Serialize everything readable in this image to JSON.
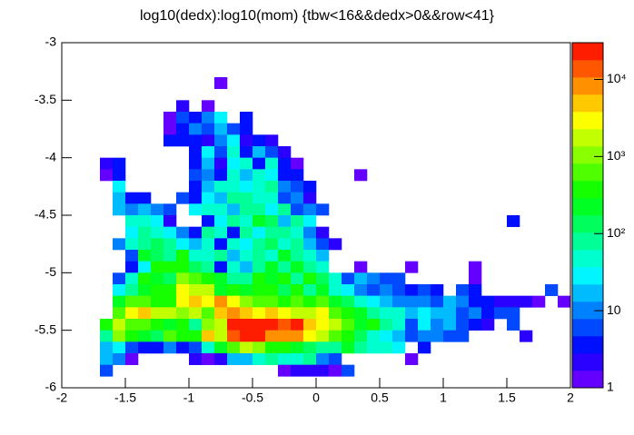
{
  "chart_data": {
    "type": "heatmap",
    "title": "log10(dedx):log10(mom) {tbw<16&&dedx>0&&row<41}",
    "xlim": [
      -2,
      2
    ],
    "ylim": [
      -6,
      -3
    ],
    "xticks": [
      -2,
      -1.5,
      -1,
      -0.5,
      0,
      0.5,
      1,
      1.5,
      2
    ],
    "yticks": [
      -6,
      -5.5,
      -5,
      -4.5,
      -4,
      -3.5,
      -3
    ],
    "zlim": [
      1,
      30000
    ],
    "log_z": true,
    "zticks": [
      1,
      10,
      {
        "value": 100,
        "label": "10²"
      },
      {
        "value": 1000,
        "label": "10³"
      },
      {
        "value": 10000,
        "label": "10⁴"
      }
    ],
    "rows": [
      {
        "y": -3.4,
        "x": [
          -0.8
        ],
        "z": [
          1
        ]
      },
      {
        "y": -3.6,
        "x": [
          -1.1,
          -0.9
        ],
        "z": [
          2,
          1
        ]
      },
      {
        "y": -3.7,
        "x": [
          -1.2,
          -1.1,
          -1.0,
          -0.9,
          -0.8,
          -0.6
        ],
        "z": [
          1,
          5,
          3,
          8,
          30,
          3
        ]
      },
      {
        "y": -3.8,
        "x": [
          -1.2,
          -1.1,
          -1.0,
          -0.9,
          -0.8,
          -0.7,
          -0.6
        ],
        "z": [
          1,
          3,
          10,
          5,
          20,
          5,
          4
        ]
      },
      {
        "y": -3.9,
        "x": [
          -1.2,
          -1.1,
          -1.0,
          -0.9,
          -0.8,
          -0.7,
          -0.6,
          -0.5,
          -0.4
        ],
        "z": [
          3,
          3,
          4,
          2,
          10,
          30,
          2,
          3,
          2
        ]
      },
      {
        "y": -4.0,
        "x": [
          -1.0,
          -0.9,
          -0.8,
          -0.7,
          -0.6,
          -0.5,
          -0.4,
          -0.3
        ],
        "z": [
          3,
          30,
          5,
          60,
          4,
          20,
          5,
          2
        ]
      },
      {
        "y": -4.1,
        "x": [
          -1.7,
          -1.6,
          -1.0,
          -0.9,
          -0.8,
          -0.7,
          -0.6,
          -0.5,
          -0.4,
          -0.3,
          -0.2
        ],
        "z": [
          2,
          4,
          3,
          20,
          2,
          30,
          60,
          4,
          40,
          3,
          1
        ]
      },
      {
        "y": -4.2,
        "x": [
          -1.7,
          -1.6,
          -1.0,
          -0.9,
          -0.8,
          -0.7,
          -0.6,
          -0.5,
          -0.4,
          -0.3,
          -0.2,
          0.3
        ],
        "z": [
          1,
          3,
          5,
          10,
          3,
          50,
          20,
          40,
          30,
          4,
          3,
          1
        ]
      },
      {
        "y": -4.3,
        "x": [
          -1.6,
          -1.0,
          -0.9,
          -0.8,
          -0.7,
          -0.6,
          -0.5,
          -0.4,
          -0.3,
          -0.2,
          -0.1
        ],
        "z": [
          30,
          3,
          20,
          50,
          40,
          30,
          60,
          80,
          10,
          5,
          3
        ]
      },
      {
        "y": -4.4,
        "x": [
          -1.6,
          -1.5,
          -1.4,
          -1.1,
          -1.0,
          -0.9,
          -0.8,
          -0.7,
          -0.6,
          -0.5,
          -0.4,
          -0.3,
          -0.2,
          -0.1
        ],
        "z": [
          20,
          3,
          4,
          5,
          3,
          30,
          20,
          80,
          100,
          60,
          40,
          5,
          10,
          2
        ]
      },
      {
        "y": -4.5,
        "x": [
          -1.6,
          -1.5,
          -1.4,
          -1.3,
          -1.2,
          -1.0,
          -0.9,
          -0.8,
          -0.7,
          -0.6,
          -0.5,
          -0.4,
          -0.3,
          -0.2,
          -0.1,
          0.0
        ],
        "z": [
          20,
          10,
          20,
          8,
          5,
          30,
          40,
          60,
          20,
          100,
          80,
          30,
          100,
          5,
          10,
          5
        ]
      },
      {
        "y": -4.6,
        "x": [
          -1.5,
          -1.4,
          -1.3,
          -1.2,
          -0.9,
          -0.8,
          -0.7,
          -0.6,
          -0.5,
          -0.4,
          -0.3,
          -0.2,
          -0.1,
          1.5
        ],
        "z": [
          40,
          60,
          30,
          2,
          3,
          30,
          100,
          60,
          200,
          150,
          20,
          80,
          30,
          4
        ]
      },
      {
        "y": -4.7,
        "x": [
          -1.5,
          -1.4,
          -1.3,
          -1.2,
          -1.1,
          -1.0,
          -0.9,
          -0.8,
          -0.7,
          -0.6,
          -0.5,
          -0.4,
          -0.3,
          -0.2,
          -0.1,
          0.0
        ],
        "z": [
          30,
          100,
          60,
          30,
          10,
          3,
          80,
          40,
          4,
          100,
          30,
          80,
          100,
          40,
          10,
          2
        ]
      },
      {
        "y": -4.8,
        "x": [
          -1.6,
          -1.5,
          -1.4,
          -1.3,
          -1.2,
          -1.1,
          -1.0,
          -0.9,
          -0.8,
          -0.7,
          -0.6,
          -0.5,
          -0.4,
          -0.3,
          -0.2,
          -0.1,
          0.0,
          0.1
        ],
        "z": [
          10,
          50,
          100,
          150,
          80,
          30,
          20,
          50,
          3,
          60,
          30,
          80,
          150,
          60,
          100,
          20,
          5,
          2
        ]
      },
      {
        "y": -4.9,
        "x": [
          -1.5,
          -1.4,
          -1.3,
          -1.2,
          -1.1,
          -1.0,
          -0.9,
          -0.8,
          -0.7,
          -0.6,
          -0.5,
          -0.4,
          -0.3,
          -0.2,
          -0.1,
          0.0
        ],
        "z": [
          5,
          200,
          150,
          100,
          300,
          60,
          40,
          80,
          20,
          40,
          100,
          60,
          200,
          80,
          40,
          20
        ]
      },
      {
        "y": -5.0,
        "x": [
          -1.5,
          -1.4,
          -1.3,
          -1.2,
          -1.1,
          -1.0,
          -0.9,
          -0.8,
          -0.7,
          -0.6,
          -0.5,
          -0.4,
          -0.3,
          -0.2,
          -0.1,
          0.0,
          0.3,
          0.7,
          1.2
        ],
        "z": [
          3,
          30,
          300,
          400,
          300,
          150,
          100,
          3,
          60,
          20,
          100,
          200,
          100,
          200,
          80,
          40,
          1,
          1,
          1
        ]
      },
      {
        "y": -5.1,
        "x": [
          -1.6,
          -1.5,
          -1.4,
          -1.3,
          -1.2,
          -1.1,
          -1.0,
          -0.9,
          -0.8,
          -0.7,
          -0.6,
          -0.5,
          -0.4,
          -0.3,
          -0.2,
          -0.1,
          0.0,
          0.1,
          0.2,
          0.3,
          0.4,
          0.5,
          0.6,
          1.2
        ],
        "z": [
          5,
          40,
          400,
          200,
          150,
          1000,
          600,
          300,
          200,
          100,
          80,
          300,
          200,
          400,
          100,
          300,
          150,
          40,
          5,
          20,
          10,
          5,
          5,
          1
        ]
      },
      {
        "y": -5.2,
        "x": [
          -1.6,
          -1.5,
          -1.4,
          -1.3,
          -1.2,
          -1.1,
          -1.0,
          -0.9,
          -0.8,
          -0.7,
          -0.6,
          -0.5,
          -0.4,
          -0.3,
          -0.2,
          -0.1,
          0.0,
          0.1,
          0.2,
          0.3,
          0.4,
          0.5,
          0.6,
          0.7,
          0.8,
          0.9,
          1.1,
          1.2,
          1.8
        ],
        "z": [
          30,
          100,
          200,
          300,
          400,
          3000,
          2000,
          1500,
          200,
          300,
          200,
          400,
          300,
          150,
          300,
          100,
          200,
          60,
          30,
          10,
          5,
          8,
          5,
          3,
          5,
          3,
          5,
          3,
          5
        ]
      },
      {
        "y": -5.3,
        "x": [
          -1.6,
          -1.5,
          -1.4,
          -1.3,
          -1.2,
          -1.1,
          -1.0,
          -0.9,
          -0.8,
          -0.7,
          -0.6,
          -0.5,
          -0.4,
          -0.3,
          -0.2,
          -0.1,
          0.0,
          0.1,
          0.2,
          0.3,
          0.4,
          0.5,
          0.6,
          0.7,
          0.8,
          0.9,
          1.0,
          1.1,
          1.2,
          1.3,
          1.4,
          1.5,
          1.6,
          1.7,
          1.9
        ],
        "z": [
          200,
          500,
          500,
          400,
          300,
          3000,
          5000,
          3000,
          8000,
          3000,
          1000,
          800,
          600,
          400,
          600,
          300,
          800,
          200,
          150,
          60,
          30,
          20,
          10,
          10,
          10,
          5,
          20,
          10,
          3,
          3,
          2,
          2,
          2,
          1,
          1
        ]
      },
      {
        "y": -5.4,
        "x": [
          -1.6,
          -1.5,
          -1.4,
          -1.3,
          -1.2,
          -1.1,
          -1.0,
          -0.9,
          -0.8,
          -0.7,
          -0.6,
          -0.5,
          -0.4,
          -0.3,
          -0.2,
          -0.1,
          0.0,
          0.1,
          0.2,
          0.3,
          0.4,
          0.5,
          0.6,
          0.7,
          0.8,
          0.9,
          1.0,
          1.1,
          1.2,
          1.3,
          1.4,
          1.5
        ],
        "z": [
          500,
          3000,
          5000,
          1500,
          2000,
          1000,
          2000,
          800,
          5000,
          10000,
          5000,
          3000,
          5000,
          3000,
          2000,
          1500,
          3000,
          500,
          300,
          200,
          80,
          50,
          40,
          20,
          30,
          20,
          15,
          5,
          10,
          3,
          5,
          5
        ]
      },
      {
        "y": -5.5,
        "x": [
          -1.7,
          -1.6,
          -1.5,
          -1.4,
          -1.3,
          -1.2,
          -1.1,
          -1.0,
          -0.9,
          -0.8,
          -0.7,
          -0.6,
          -0.5,
          -0.4,
          -0.3,
          -0.2,
          -0.1,
          0.0,
          0.1,
          0.2,
          0.3,
          0.4,
          0.5,
          0.6,
          0.7,
          0.8,
          0.9,
          1.0,
          1.1,
          1.2,
          1.3,
          1.5
        ],
        "z": [
          300,
          2000,
          800,
          500,
          300,
          200,
          300,
          100,
          1000,
          2000,
          20000,
          25000,
          20000,
          20000,
          15000,
          20000,
          5000,
          3000,
          1500,
          800,
          200,
          300,
          100,
          50,
          5,
          30,
          10,
          20,
          5,
          3,
          2,
          5
        ]
      },
      {
        "y": -5.6,
        "x": [
          -1.7,
          -1.6,
          -1.5,
          -1.4,
          -1.3,
          -1.2,
          -1.1,
          -1.0,
          -0.9,
          -0.8,
          -0.7,
          -0.6,
          -0.5,
          -0.4,
          -0.3,
          -0.2,
          -0.1,
          0.0,
          0.1,
          0.2,
          0.3,
          0.4,
          0.5,
          0.6,
          0.7,
          0.8,
          0.9,
          1.0,
          1.1,
          1.6
        ],
        "z": [
          100,
          1000,
          300,
          200,
          150,
          500,
          300,
          400,
          5000,
          2000,
          15000,
          20000,
          20000,
          10000,
          8000,
          10000,
          3000,
          2000,
          500,
          300,
          150,
          50,
          30,
          20,
          5,
          8,
          10,
          5,
          5,
          2
        ]
      },
      {
        "y": -5.7,
        "x": [
          -1.7,
          -1.6,
          -1.5,
          -1.4,
          -1.3,
          -1.2,
          -1.1,
          -1.0,
          -0.9,
          -0.8,
          -0.7,
          -0.6,
          -0.5,
          -0.4,
          -0.3,
          -0.2,
          -0.1,
          0.0,
          0.1,
          0.2,
          0.3,
          0.4,
          0.5,
          0.6,
          0.8
        ],
        "z": [
          20,
          30,
          5,
          3,
          4,
          10,
          3,
          5,
          50,
          200,
          800,
          1500,
          1000,
          400,
          300,
          200,
          150,
          100,
          80,
          200,
          100,
          50,
          40,
          30,
          3
        ]
      },
      {
        "y": -5.8,
        "x": [
          -1.7,
          -1.6,
          -1.5,
          -1.0,
          -0.9,
          -0.8,
          -0.7,
          -0.6,
          -0.5,
          -0.4,
          -0.3,
          -0.2,
          -0.1,
          0.0,
          0.1,
          0.7
        ],
        "z": [
          20,
          10,
          1,
          2,
          1,
          2,
          20,
          20,
          50,
          80,
          60,
          40,
          100,
          10,
          5,
          1
        ]
      },
      {
        "y": -5.9,
        "x": [
          -1.7,
          -0.3,
          -0.2,
          -0.1,
          0.0,
          0.1,
          0.2
        ],
        "z": [
          5,
          1,
          2,
          2,
          2,
          1,
          5
        ]
      }
    ]
  }
}
